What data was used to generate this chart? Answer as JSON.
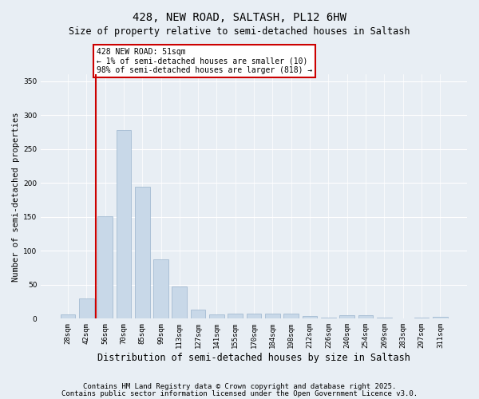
{
  "title": "428, NEW ROAD, SALTASH, PL12 6HW",
  "subtitle": "Size of property relative to semi-detached houses in Saltash",
  "xlabel": "Distribution of semi-detached houses by size in Saltash",
  "ylabel": "Number of semi-detached properties",
  "categories": [
    "28sqm",
    "42sqm",
    "56sqm",
    "70sqm",
    "85sqm",
    "99sqm",
    "113sqm",
    "127sqm",
    "141sqm",
    "155sqm",
    "170sqm",
    "184sqm",
    "198sqm",
    "212sqm",
    "226sqm",
    "240sqm",
    "254sqm",
    "269sqm",
    "283sqm",
    "297sqm",
    "311sqm"
  ],
  "values": [
    6,
    30,
    151,
    278,
    195,
    88,
    48,
    13,
    6,
    7,
    7,
    8,
    7,
    4,
    1,
    5,
    5,
    1,
    0,
    1,
    3
  ],
  "bar_color": "#c8d8e8",
  "bar_edge_color": "#9ab4cc",
  "vline_x": 1.5,
  "vline_color": "#cc0000",
  "annotation_text": "428 NEW ROAD: 51sqm\n← 1% of semi-detached houses are smaller (10)\n98% of semi-detached houses are larger (818) →",
  "annotation_box_color": "#ffffff",
  "annotation_box_edge": "#cc0000",
  "ylim": [
    0,
    360
  ],
  "yticks": [
    0,
    50,
    100,
    150,
    200,
    250,
    300,
    350
  ],
  "footer1": "Contains HM Land Registry data © Crown copyright and database right 2025.",
  "footer2": "Contains public sector information licensed under the Open Government Licence v3.0.",
  "bg_color": "#e8eef4",
  "plot_bg_color": "#e8eef4",
  "grid_color": "#ffffff",
  "title_fontsize": 10,
  "subtitle_fontsize": 8.5,
  "xlabel_fontsize": 8.5,
  "ylabel_fontsize": 7.5,
  "tick_fontsize": 6.5,
  "footer_fontsize": 6.5,
  "annotation_fontsize": 7
}
